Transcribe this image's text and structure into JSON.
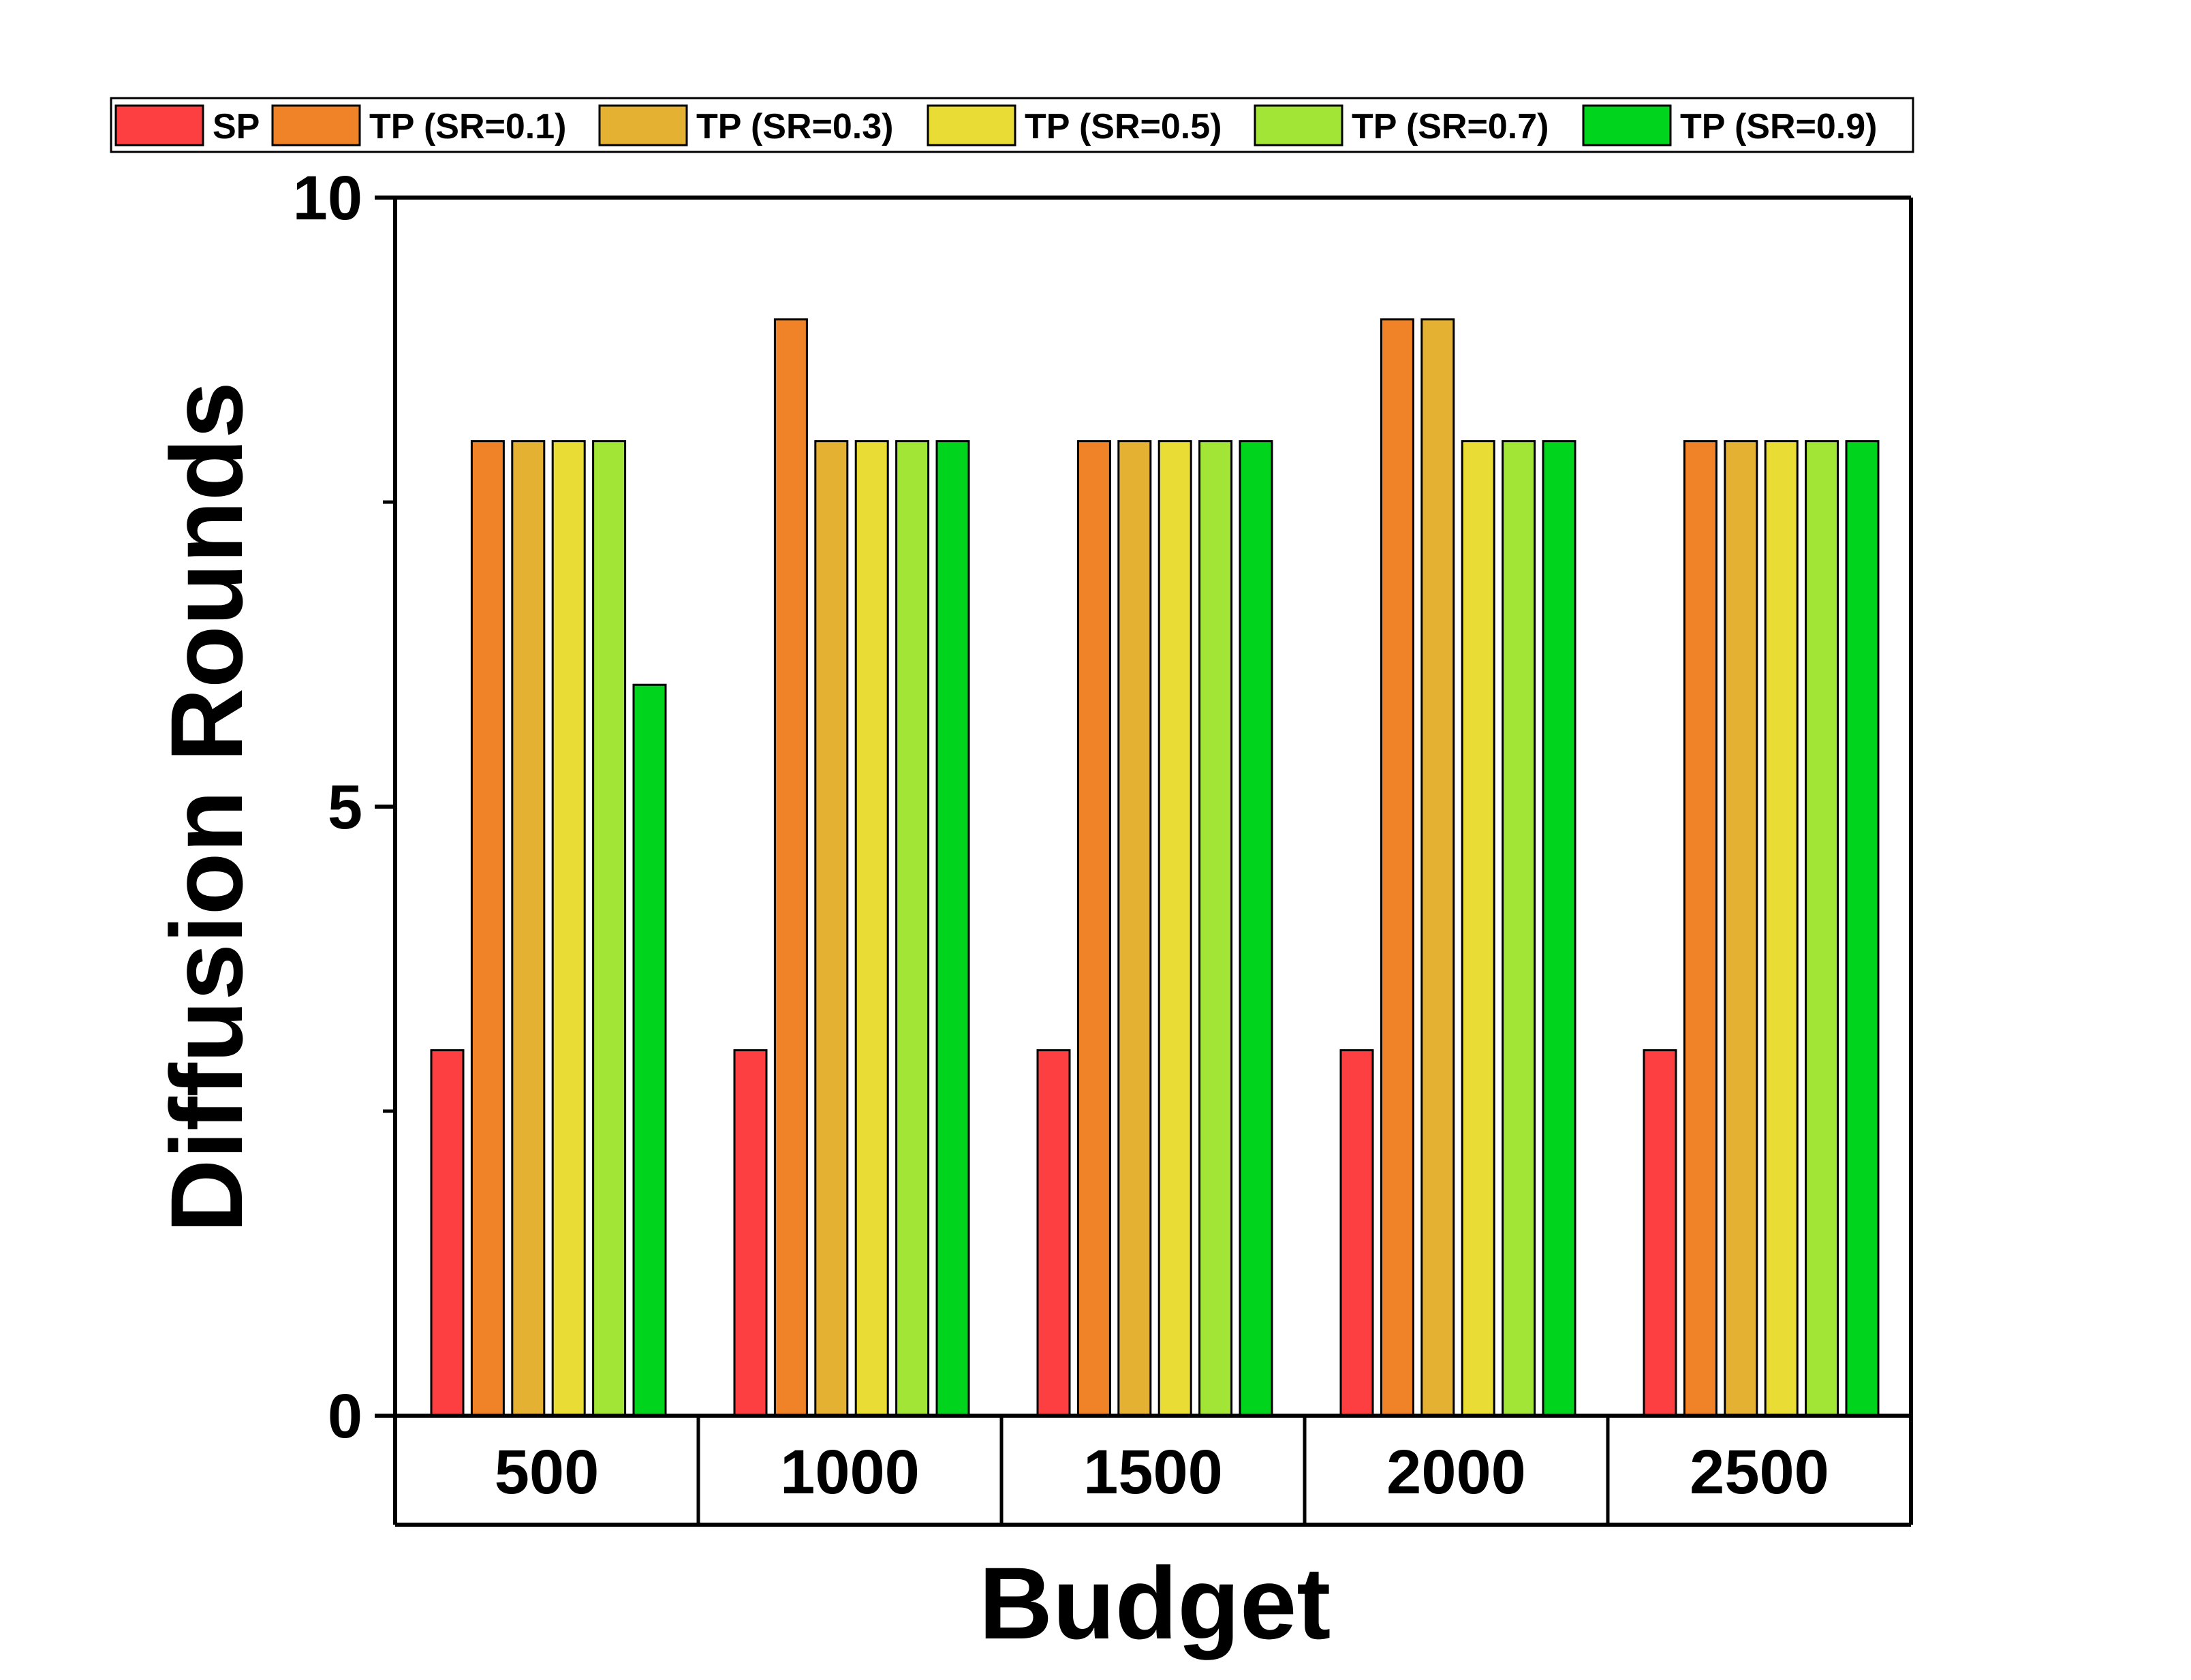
{
  "chart_data": {
    "type": "bar",
    "title": "",
    "xlabel": "Budget",
    "ylabel": "Diffusion Rounds",
    "categories": [
      "500",
      "1000",
      "1500",
      "2000",
      "2500"
    ],
    "ylim": [
      0,
      10
    ],
    "yticks": [
      "0",
      "5",
      "10"
    ],
    "grid": false,
    "legend_position": "top",
    "series": [
      {
        "name": "SP",
        "color": "#fd3f41",
        "values": [
          3,
          3,
          3,
          3,
          3
        ]
      },
      {
        "name": "TP (SR=0.1)",
        "color": "#f08327",
        "values": [
          8,
          9,
          8,
          9,
          8
        ]
      },
      {
        "name": "TP (SR=0.3)",
        "color": "#e5b133",
        "values": [
          8,
          8,
          8,
          9,
          8
        ]
      },
      {
        "name": "TP (SR=0.5)",
        "color": "#e9dc35",
        "values": [
          8,
          8,
          8,
          8,
          8
        ]
      },
      {
        "name": "TP (SR=0.7)",
        "color": "#a3e536",
        "values": [
          8,
          8,
          8,
          8,
          8
        ]
      },
      {
        "name": "TP (SR=0.9)",
        "color": "#00d41c",
        "values": [
          6,
          8,
          8,
          8,
          8
        ]
      }
    ]
  }
}
